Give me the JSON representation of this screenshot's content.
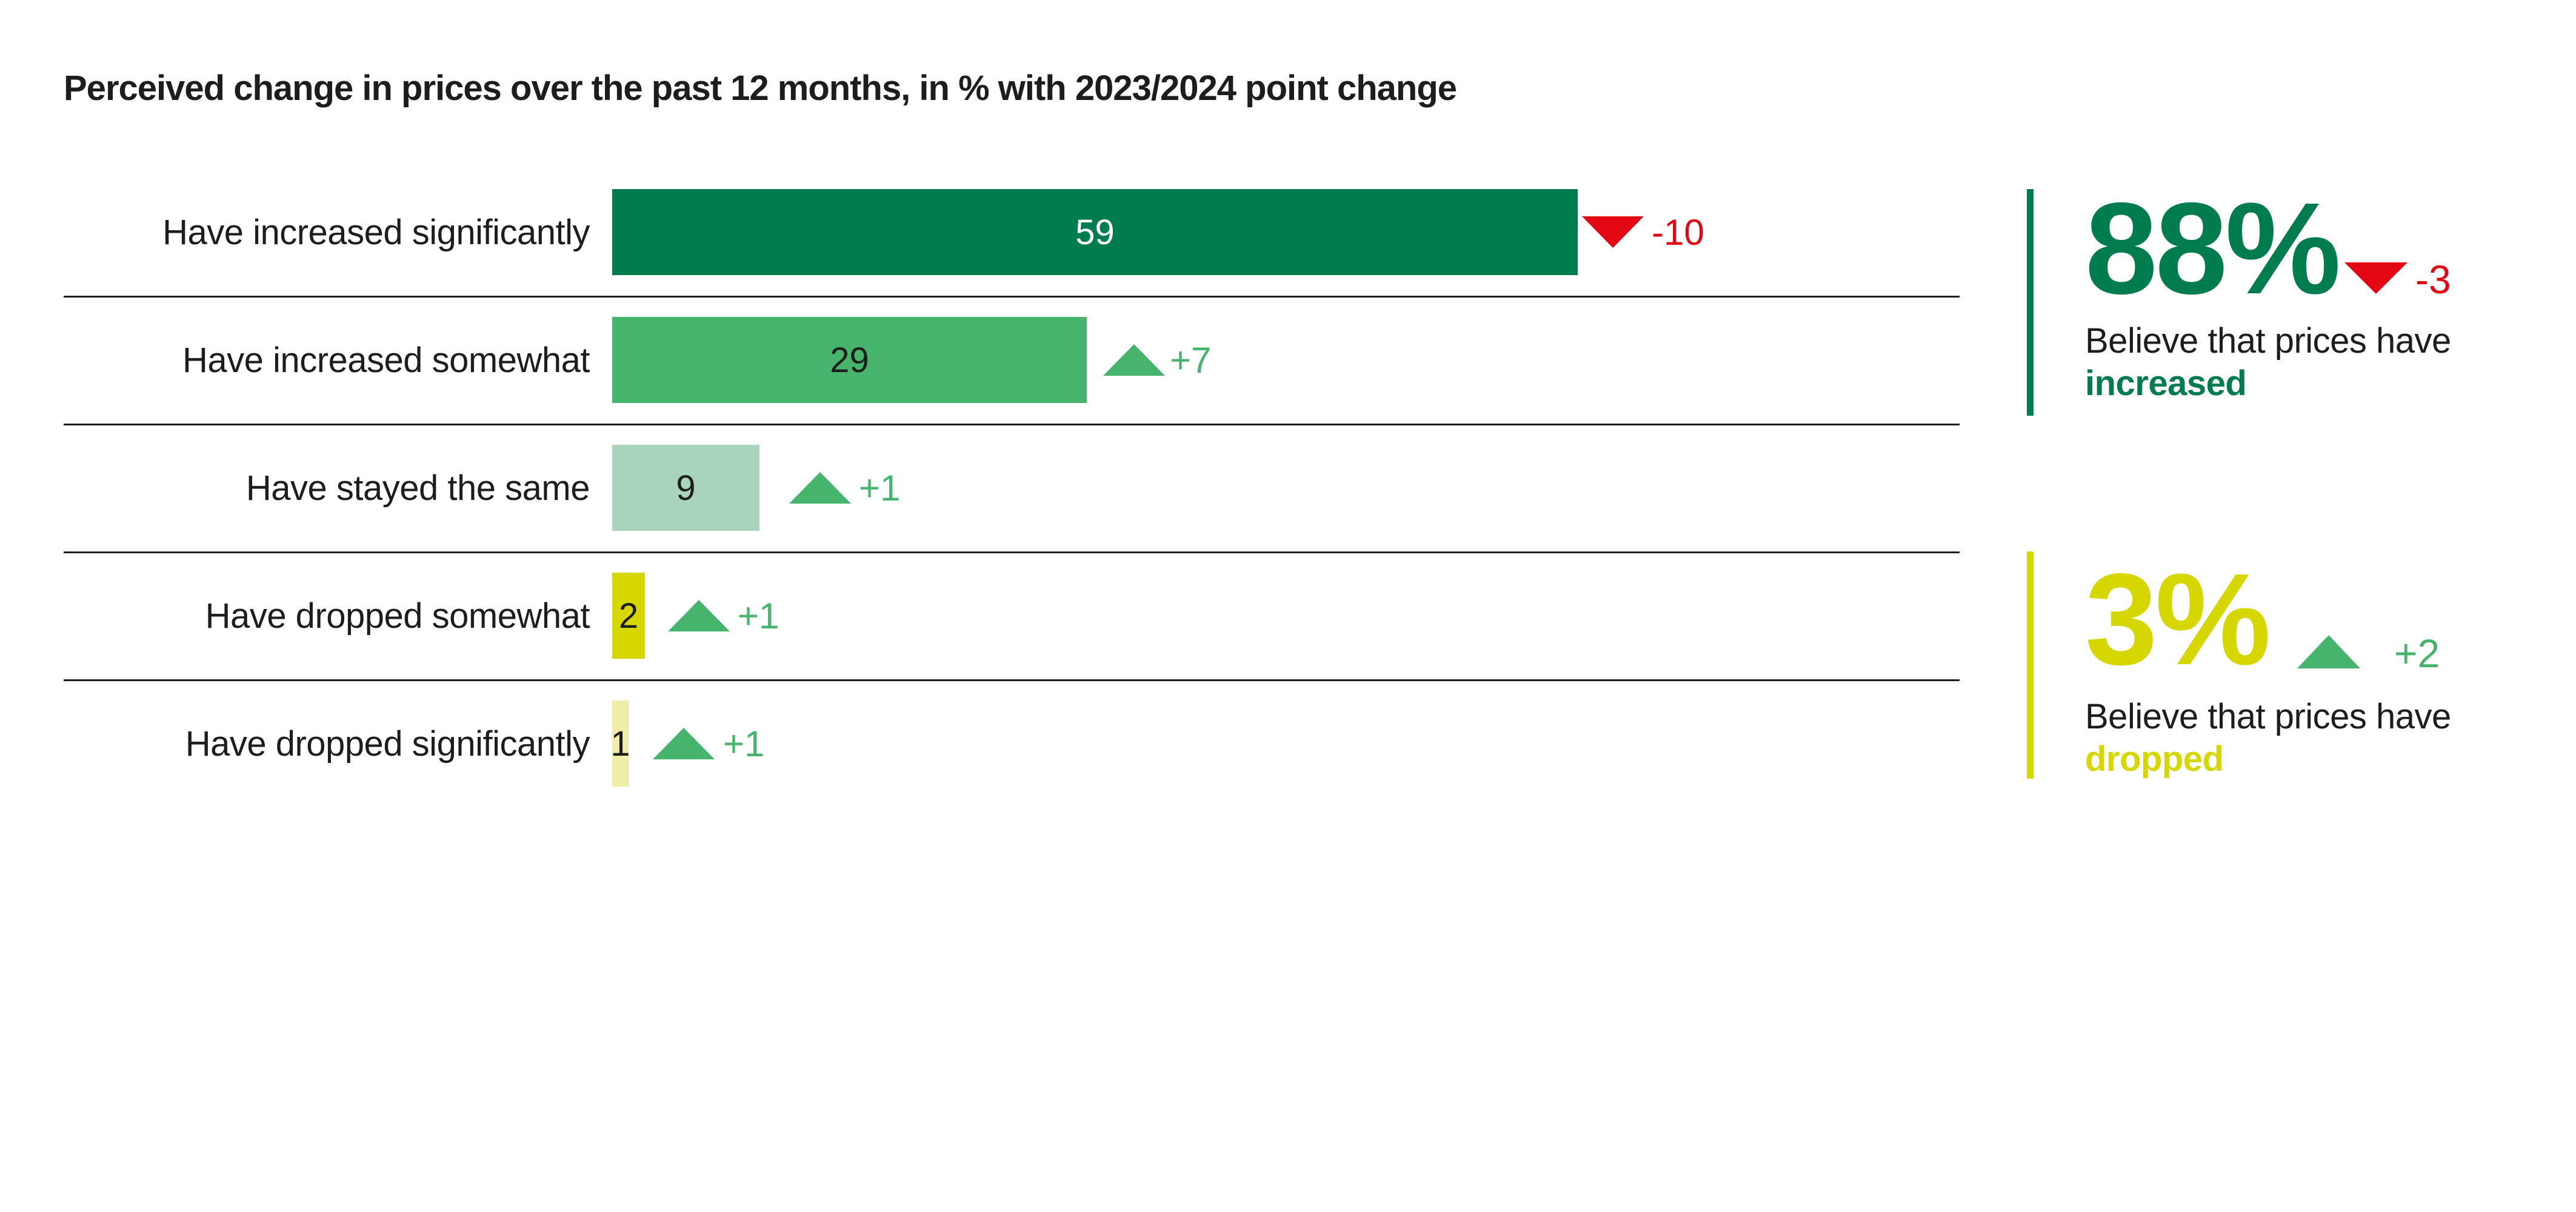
{
  "title": "Perceived change in prices over the past 12 months, in % with 2023/2024 point change",
  "chart_data": {
    "type": "bar",
    "orientation": "horizontal",
    "categories": [
      "Have increased significantly",
      "Have increased somewhat",
      "Have stayed the same",
      "Have dropped somewhat",
      "Have dropped significantly"
    ],
    "values": [
      59,
      29,
      9,
      2,
      1
    ],
    "changes": [
      -10,
      7,
      1,
      1,
      1
    ],
    "change_labels": [
      "-10",
      "+7",
      "+1",
      "+1",
      "+1"
    ],
    "bar_colors": [
      "#007c4e",
      "#46b46c",
      "#a9d4bc",
      "#d6d600",
      "#f0eda9"
    ],
    "value_text_colors": [
      "#ffffff",
      "#1d1d1b",
      "#1d1d1b",
      "#1d1d1b",
      "#1d1d1b"
    ],
    "title": "Perceived change in prices over the past 12 months, in % with 2023/2024 point change",
    "xlabel": "",
    "ylabel": "",
    "xlim": [
      0,
      59
    ],
    "grid": false,
    "legend": false,
    "unit": "%"
  },
  "summary": [
    {
      "value": "88%",
      "change": -3,
      "change_label": "-3",
      "line1": "Believe that prices have",
      "line2": "increased",
      "accent": "#007c4e",
      "triangle_icon": "triangle-down-icon"
    },
    {
      "value": "3%",
      "change": 2,
      "change_label": "+2",
      "line1": "Believe that prices have",
      "line2": "dropped",
      "accent": "#d6d600",
      "triangle_icon": "triangle-up-icon"
    }
  ],
  "colors": {
    "positive": "#46b46c",
    "negative": "#e30613",
    "text": "#1d1d1b",
    "background": "#ffffff"
  },
  "icons": {
    "up": "triangle-up-icon",
    "down": "triangle-down-icon"
  }
}
